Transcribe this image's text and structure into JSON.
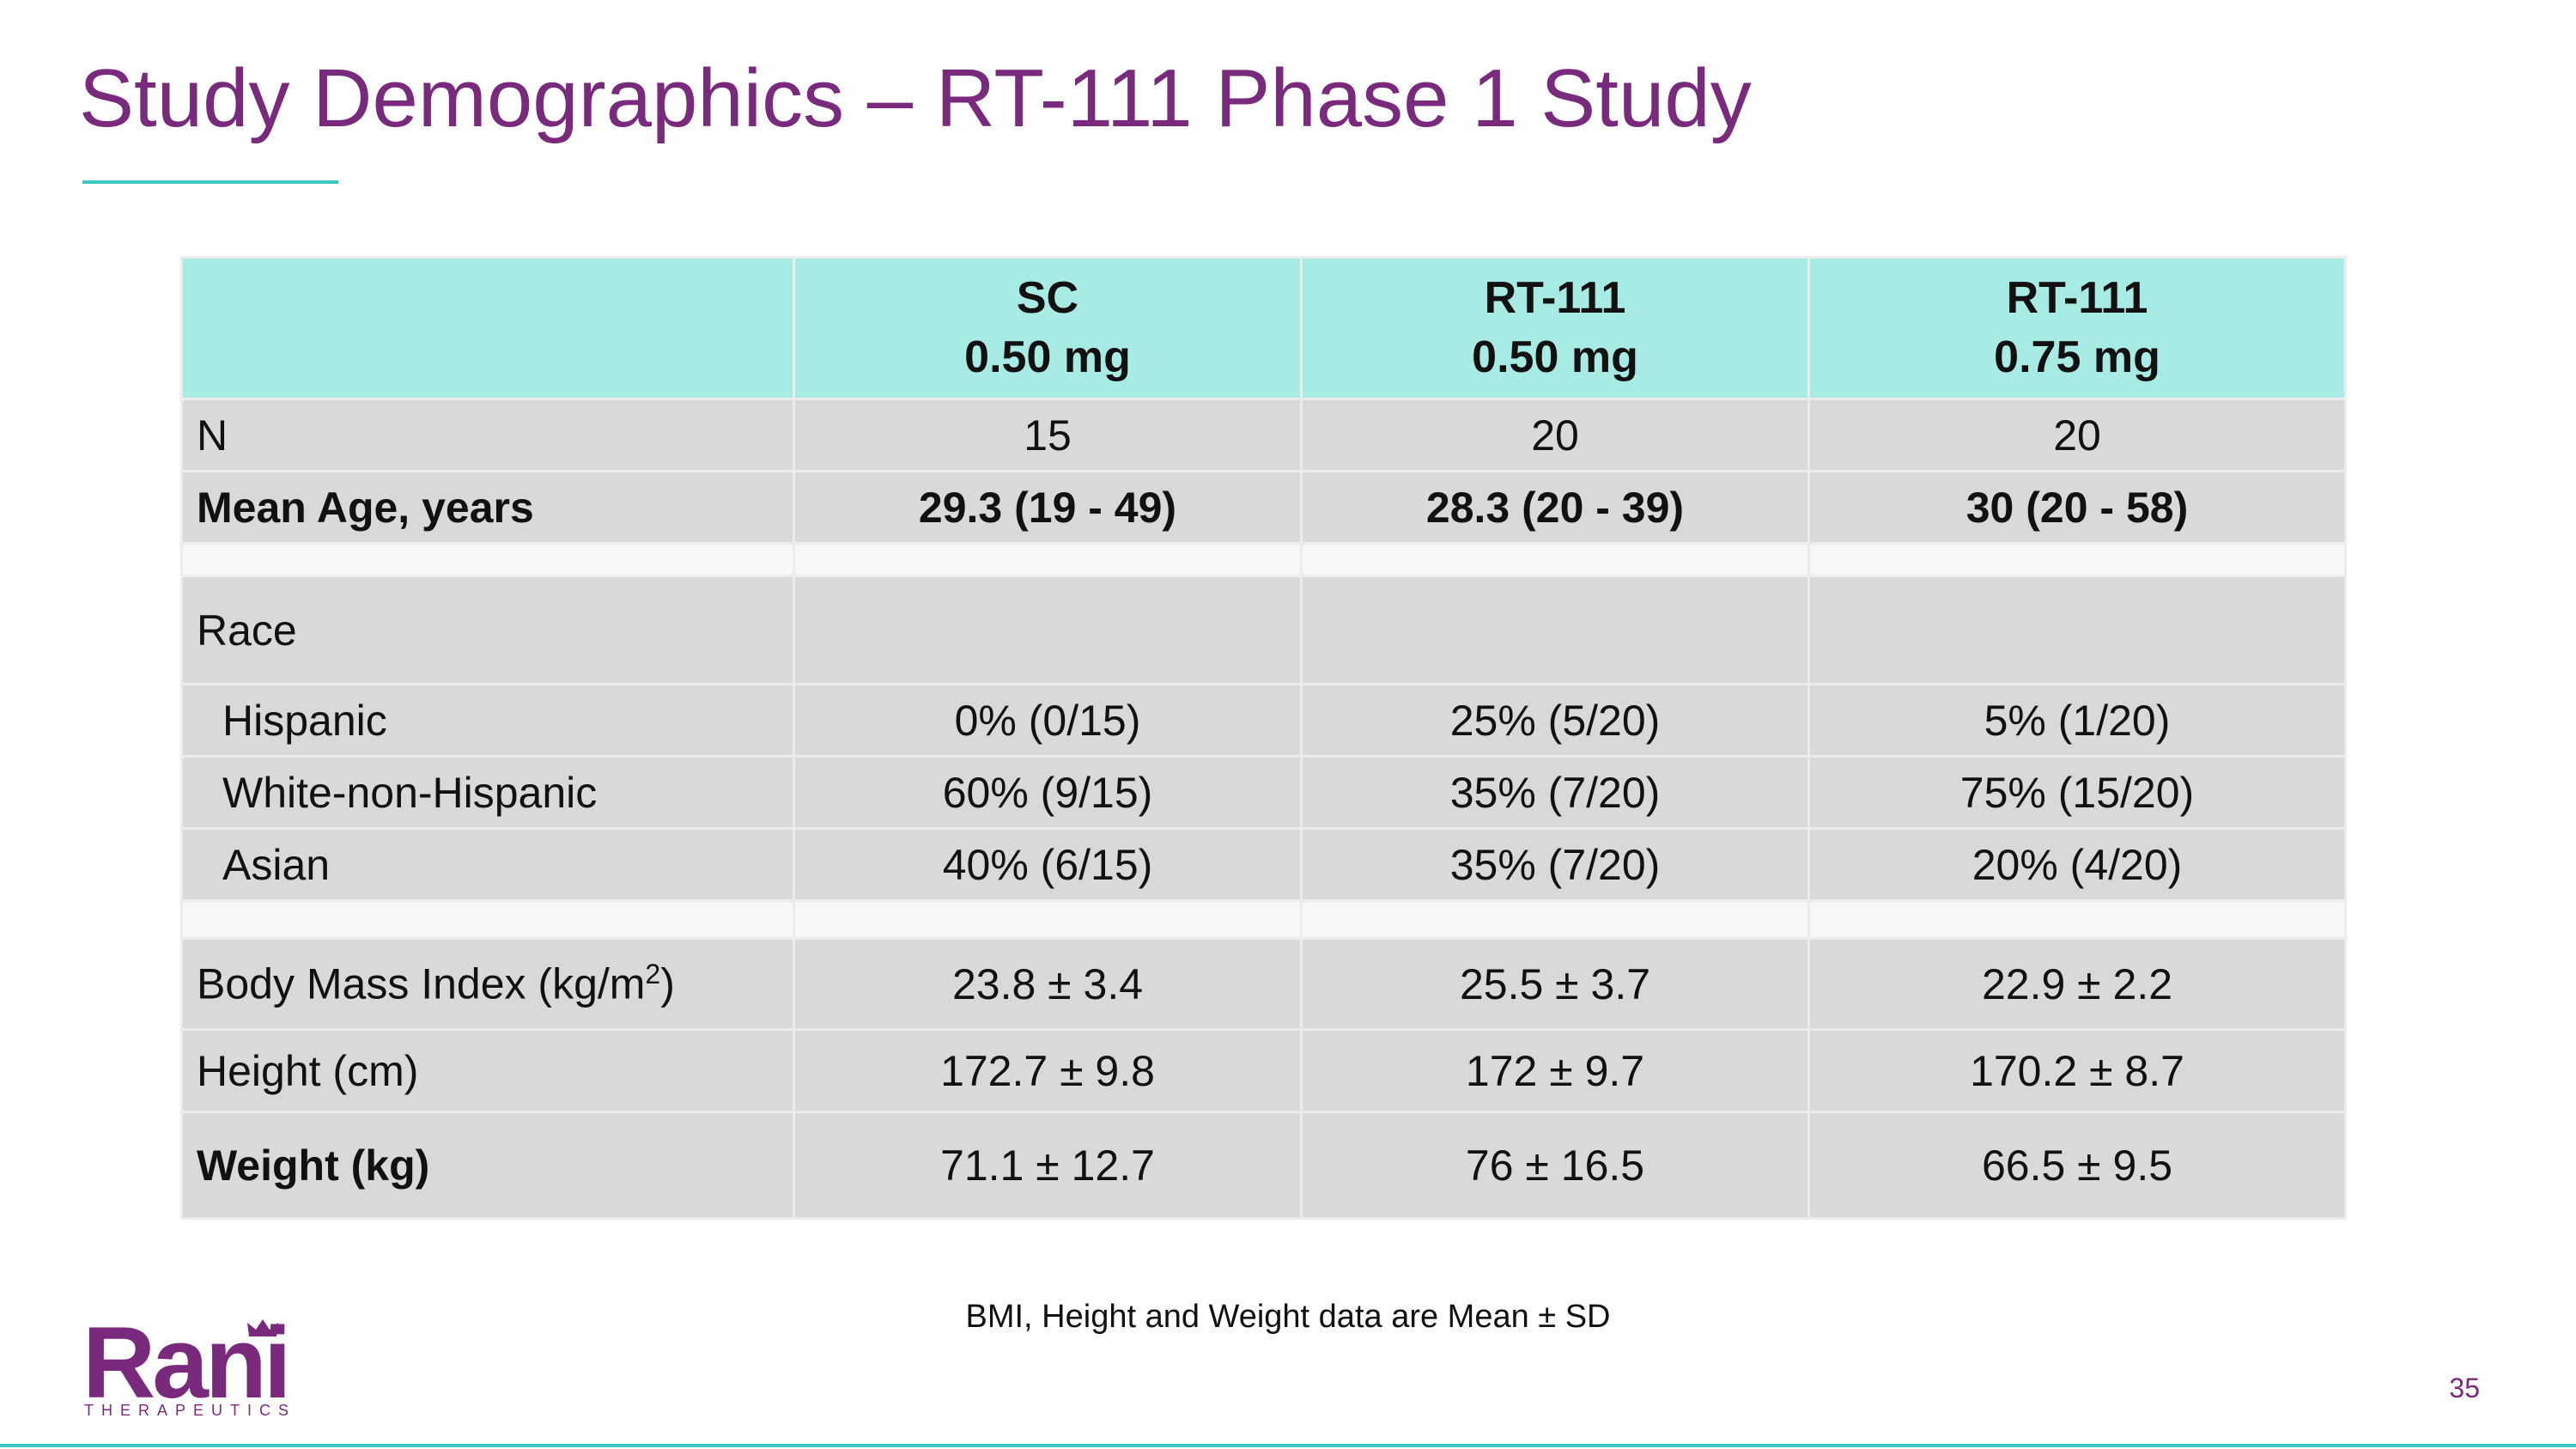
{
  "slide": {
    "title": "Study Demographics – RT-111 Phase 1 Study",
    "page_number": "35",
    "footnote": "BMI, Height and Weight data are Mean ± SD"
  },
  "logo": {
    "word": "Rani",
    "subtitle": "THERAPEUTICS"
  },
  "table": {
    "headers": [
      {
        "line1": "",
        "line2": ""
      },
      {
        "line1": "SC",
        "line2": "0.50 mg"
      },
      {
        "line1": "RT-111",
        "line2": "0.50 mg"
      },
      {
        "line1": "RT-111",
        "line2": "0.75 mg"
      }
    ],
    "rows": [
      {
        "label": "N",
        "values": [
          "15",
          "20",
          "20"
        ]
      },
      {
        "label": "Mean Age, years",
        "values": [
          "29.3 (19 - 49)",
          "28.3 (20 - 39)",
          "30 (20 - 58)"
        ]
      },
      {
        "label": "Race"
      },
      {
        "label": "Hispanic",
        "values": [
          "0% (0/15)",
          "25% (5/20)",
          "5% (1/20)"
        ]
      },
      {
        "label": "White-non-Hispanic",
        "values": [
          "60% (9/15)",
          "35% (7/20)",
          "75% (15/20)"
        ]
      },
      {
        "label": "Asian",
        "values": [
          "40% (6/15)",
          "35% (7/20)",
          "20% (4/20)"
        ]
      },
      {
        "label": "Body Mass Index (kg/m",
        "label_sup": "2",
        "label_suffix": ")",
        "values": [
          "23.8 ± 3.4",
          "25.5 ± 3.7",
          "22.9 ± 2.2"
        ]
      },
      {
        "label": "Height (cm)",
        "values": [
          "172.7 ± 9.8",
          "172 ± 9.7",
          "170.2 ± 8.7"
        ]
      },
      {
        "label": "Weight (kg)",
        "values": [
          "71.1 ± 12.7",
          "76 ± 16.5",
          "66.5 ± 9.5"
        ]
      }
    ]
  },
  "colors": {
    "title": "#7a2a7c",
    "accent_teal": "#3cc8c0",
    "header_fill": "#a8ebe5",
    "cell_fill": "#d9d9d9"
  }
}
